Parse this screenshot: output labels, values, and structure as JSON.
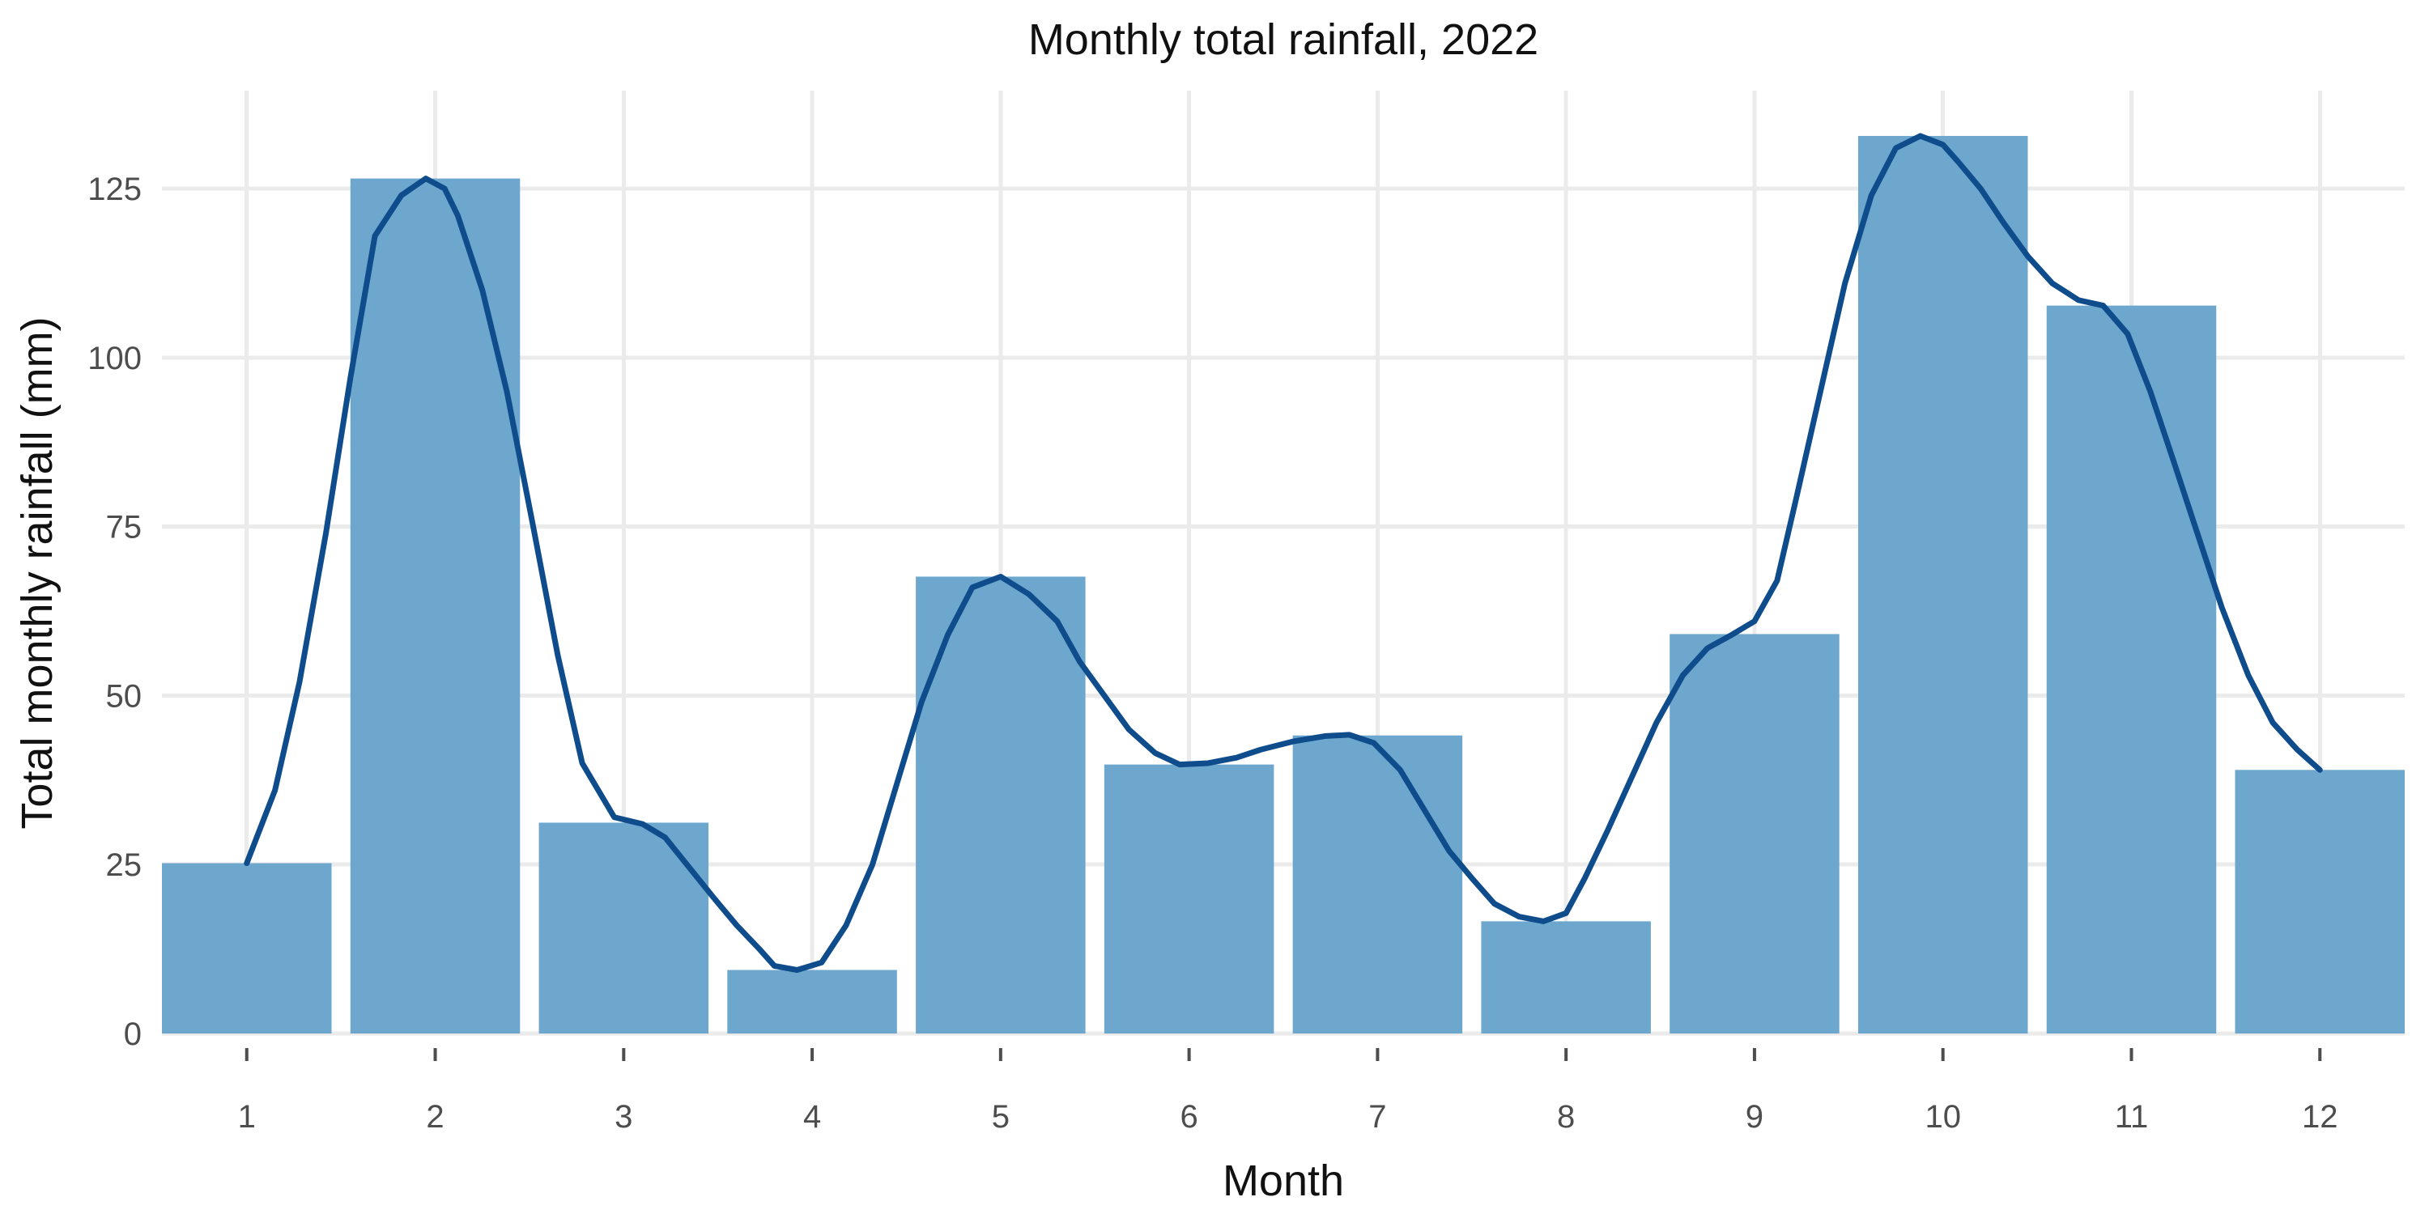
{
  "chart_data": {
    "type": "bar",
    "title": "Monthly total rainfall, 2022",
    "xlabel": "Month",
    "ylabel": "Total monthly rainfall (mm)",
    "categories": [
      "1",
      "2",
      "3",
      "4",
      "5",
      "6",
      "7",
      "8",
      "9",
      "10",
      "11",
      "12"
    ],
    "values": [
      25.2,
      126.5,
      31.2,
      9.4,
      67.6,
      39.8,
      44.1,
      16.6,
      59.1,
      132.8,
      107.7,
      39.0
    ],
    "ylim": [
      0,
      139.5
    ],
    "y_ticks": [
      0,
      25,
      50,
      75,
      100,
      125
    ],
    "grid": true,
    "legend": "none",
    "colors": {
      "bar": "#6da7ce",
      "line": "#0f4c8c",
      "grid": "#ebebeb"
    },
    "smooth_line": {
      "x": [
        1.0,
        1.15,
        1.28,
        1.42,
        1.55,
        1.68,
        1.82,
        1.95,
        2.05,
        2.12,
        2.25,
        2.38,
        2.52,
        2.65,
        2.78,
        2.95,
        3.1,
        3.22,
        3.35,
        3.48,
        3.6,
        3.72,
        3.8,
        3.92,
        4.05,
        4.18,
        4.32,
        4.45,
        4.58,
        4.72,
        4.85,
        5.0,
        5.15,
        5.3,
        5.42,
        5.55,
        5.68,
        5.82,
        5.95,
        6.1,
        6.25,
        6.38,
        6.55,
        6.72,
        6.85,
        6.98,
        7.12,
        7.25,
        7.38,
        7.5,
        7.62,
        7.75,
        7.88,
        8.0,
        8.1,
        8.22,
        8.35,
        8.48,
        8.62,
        8.75,
        8.88,
        9.0,
        9.12,
        9.22,
        9.35,
        9.48,
        9.62,
        9.75,
        9.88,
        10.0,
        10.08,
        10.2,
        10.32,
        10.45,
        10.58,
        10.72,
        10.85,
        10.98,
        11.1,
        11.22,
        11.35,
        11.48,
        11.62,
        11.75,
        11.88,
        12.0
      ],
      "y": [
        25.2,
        36,
        52,
        74,
        97,
        118,
        124,
        126.5,
        125,
        121,
        110,
        95,
        75,
        56,
        40,
        32,
        31,
        29,
        24.5,
        20,
        16,
        12.5,
        10,
        9.4,
        10.5,
        16,
        25,
        37,
        49,
        59,
        66,
        67.6,
        65,
        61,
        55,
        50,
        45,
        41.5,
        39.8,
        40,
        40.8,
        42,
        43.2,
        44,
        44.2,
        43,
        39,
        33,
        27,
        23,
        19.2,
        17.3,
        16.6,
        17.8,
        23,
        30,
        38,
        46,
        53,
        57,
        59,
        61,
        67,
        79,
        95,
        111,
        124,
        131,
        132.8,
        131.5,
        129,
        125,
        120,
        115,
        111,
        108.5,
        107.7,
        103.5,
        95,
        85,
        74,
        63,
        53,
        46,
        42,
        39.0
      ]
    }
  }
}
